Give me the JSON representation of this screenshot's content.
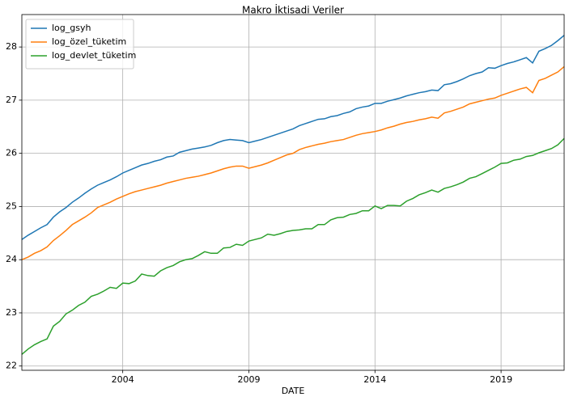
{
  "chart_data": {
    "type": "line",
    "title": "Makro İktisadi Veriler",
    "x_label": "DATE",
    "x": [
      2000,
      2000.25,
      2000.5,
      2000.75,
      2001,
      2001.25,
      2001.5,
      2001.75,
      2002,
      2002.25,
      2002.5,
      2002.75,
      2003,
      2003.25,
      2003.5,
      2003.75,
      2004,
      2004.25,
      2004.5,
      2004.75,
      2005,
      2005.25,
      2005.5,
      2005.75,
      2006,
      2006.25,
      2006.5,
      2006.75,
      2007,
      2007.25,
      2007.5,
      2007.75,
      2008,
      2008.25,
      2008.5,
      2008.75,
      2009,
      2009.25,
      2009.5,
      2009.75,
      2010,
      2010.25,
      2010.5,
      2010.75,
      2011,
      2011.25,
      2011.5,
      2011.75,
      2012,
      2012.25,
      2012.5,
      2012.75,
      2013,
      2013.25,
      2013.5,
      2013.75,
      2014,
      2014.25,
      2014.5,
      2014.75,
      2015,
      2015.25,
      2015.5,
      2015.75,
      2016,
      2016.25,
      2016.5,
      2016.75,
      2017,
      2017.25,
      2017.5,
      2017.75,
      2018,
      2018.25,
      2018.5,
      2018.75,
      2019,
      2019.25,
      2019.5,
      2019.75,
      2020,
      2020.25,
      2020.5,
      2020.75,
      2021,
      2021.25,
      2021.5
    ],
    "series": [
      {
        "name": "log_gsyh",
        "color": "#1f77b4",
        "values": [
          24.38,
          24.46,
          24.53,
          24.6,
          24.66,
          24.8,
          24.9,
          24.98,
          25.08,
          25.16,
          25.25,
          25.33,
          25.4,
          25.45,
          25.5,
          25.56,
          25.63,
          25.68,
          25.73,
          25.78,
          25.81,
          25.85,
          25.88,
          25.93,
          25.95,
          26.02,
          26.05,
          26.08,
          26.1,
          26.12,
          26.15,
          26.2,
          26.24,
          26.26,
          26.25,
          26.24,
          26.2,
          26.23,
          26.26,
          26.3,
          26.34,
          26.38,
          26.42,
          26.46,
          26.52,
          26.56,
          26.6,
          26.64,
          26.65,
          26.69,
          26.71,
          26.75,
          26.78,
          26.84,
          26.87,
          26.89,
          26.94,
          26.94,
          26.98,
          27.01,
          27.04,
          27.08,
          27.11,
          27.14,
          27.16,
          27.19,
          27.18,
          27.29,
          27.31,
          27.35,
          27.4,
          27.46,
          27.5,
          27.53,
          27.61,
          27.6,
          27.65,
          27.69,
          27.72,
          27.76,
          27.8,
          27.7,
          27.92,
          27.97,
          28.03,
          28.12,
          28.22
        ]
      },
      {
        "name": "log_özel_tüketim",
        "color": "#ff7f0e",
        "values": [
          24.0,
          24.05,
          24.12,
          24.17,
          24.24,
          24.36,
          24.45,
          24.55,
          24.66,
          24.73,
          24.8,
          24.88,
          24.98,
          25.03,
          25.08,
          25.14,
          25.19,
          25.24,
          25.28,
          25.31,
          25.34,
          25.37,
          25.4,
          25.44,
          25.47,
          25.5,
          25.53,
          25.55,
          25.57,
          25.6,
          25.63,
          25.67,
          25.71,
          25.74,
          25.76,
          25.76,
          25.72,
          25.75,
          25.78,
          25.82,
          25.87,
          25.92,
          25.97,
          26.0,
          26.07,
          26.11,
          26.14,
          26.17,
          26.19,
          26.22,
          26.24,
          26.26,
          26.3,
          26.34,
          26.37,
          26.39,
          26.41,
          26.44,
          26.48,
          26.51,
          26.55,
          26.58,
          26.6,
          26.63,
          26.65,
          26.68,
          26.66,
          26.76,
          26.79,
          26.83,
          26.87,
          26.93,
          26.96,
          26.99,
          27.02,
          27.04,
          27.09,
          27.13,
          27.17,
          27.21,
          27.24,
          27.14,
          27.37,
          27.41,
          27.47,
          27.53,
          27.63
        ]
      },
      {
        "name": "log_devlet_tüketim",
        "color": "#2ca02c",
        "values": [
          22.22,
          22.32,
          22.4,
          22.46,
          22.51,
          22.75,
          22.84,
          22.98,
          23.05,
          23.14,
          23.2,
          23.31,
          23.35,
          23.41,
          23.48,
          23.46,
          23.56,
          23.55,
          23.6,
          23.73,
          23.7,
          23.69,
          23.79,
          23.85,
          23.89,
          23.96,
          24.0,
          24.02,
          24.08,
          24.15,
          24.12,
          24.12,
          24.22,
          24.23,
          24.29,
          24.27,
          24.35,
          24.38,
          24.41,
          24.48,
          24.46,
          24.49,
          24.53,
          24.55,
          24.56,
          24.58,
          24.58,
          24.66,
          24.66,
          24.75,
          24.79,
          24.8,
          24.85,
          24.87,
          24.92,
          24.92,
          25.01,
          24.96,
          25.02,
          25.02,
          25.01,
          25.1,
          25.15,
          25.22,
          25.26,
          25.31,
          25.27,
          25.34,
          25.37,
          25.41,
          25.46,
          25.53,
          25.56,
          25.62,
          25.68,
          25.74,
          25.81,
          25.82,
          25.87,
          25.89,
          25.94,
          25.96,
          26.01,
          26.05,
          26.09,
          26.16,
          26.28
        ]
      }
    ],
    "xlim": [
      2000,
      2021.5
    ],
    "xticks": [
      2004,
      2009,
      2014,
      2019
    ],
    "ylim": [
      21.92,
      28.61
    ],
    "yticks": [
      22,
      23,
      24,
      25,
      26,
      27,
      28
    ],
    "grid": true,
    "legend": "upper left"
  }
}
